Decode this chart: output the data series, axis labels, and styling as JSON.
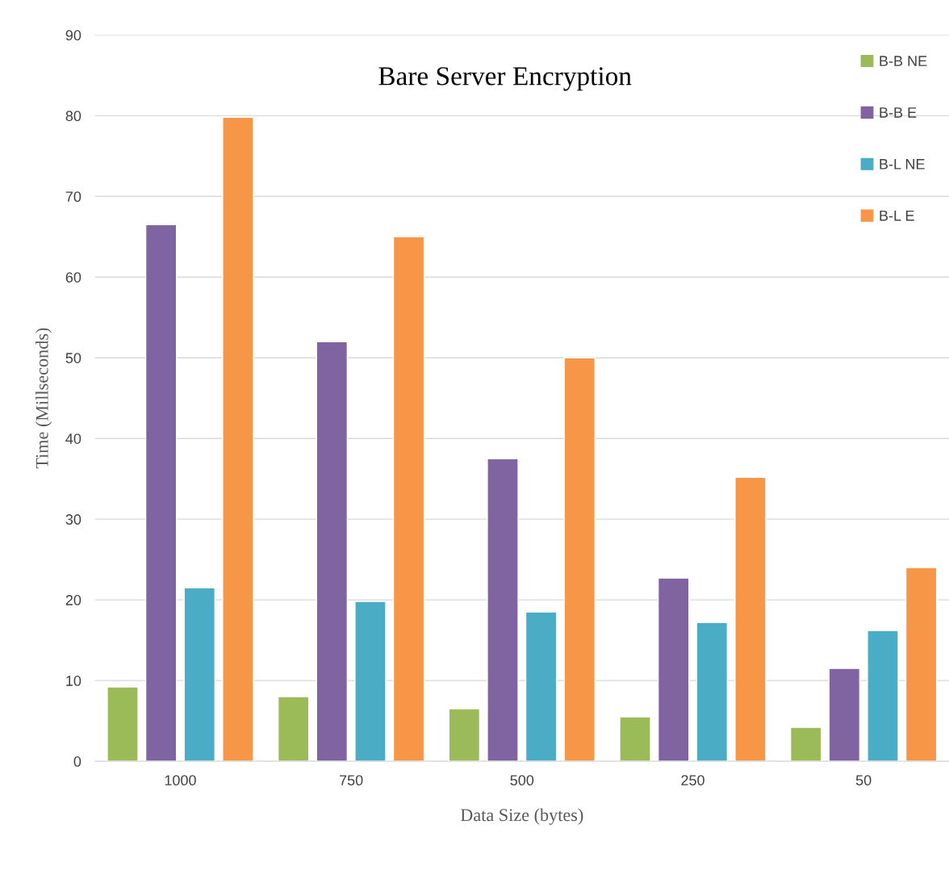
{
  "chart_data": {
    "type": "bar",
    "title": "Bare Server Encryption",
    "xlabel": "Data Size (bytes)",
    "ylabel": "Time (Millseconds)",
    "categories": [
      "1000",
      "750",
      "500",
      "250",
      "50"
    ],
    "series": [
      {
        "name": "B-B NE",
        "color": "#9bbb59",
        "values": [
          9.2,
          8.0,
          6.5,
          5.5,
          4.2
        ]
      },
      {
        "name": "B-B E",
        "color": "#8064a2",
        "values": [
          66.5,
          52.0,
          37.5,
          22.7,
          11.5
        ]
      },
      {
        "name": "B-L NE",
        "color": "#4bacc6",
        "values": [
          21.5,
          19.8,
          18.5,
          17.2,
          16.2
        ]
      },
      {
        "name": "B-L E",
        "color": "#f79646",
        "values": [
          79.8,
          65.0,
          50.0,
          35.2,
          24.0
        ]
      }
    ],
    "ylim": [
      0,
      90
    ],
    "yticks": [
      0,
      10,
      20,
      30,
      40,
      50,
      60,
      70,
      80,
      90
    ],
    "grid": "y",
    "legend": "top right"
  }
}
